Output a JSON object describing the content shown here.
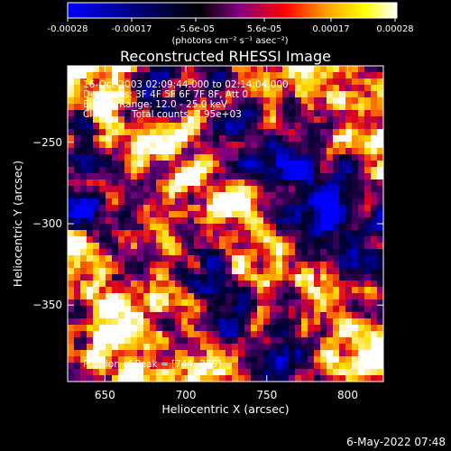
{
  "colorbar": {
    "tick_labels": [
      "-0.00028",
      "-0.00017",
      "-5.6e-05",
      "5.6e-05",
      "0.00017",
      "0.00028"
    ],
    "unit_label": "(photons cm⁻² s⁻¹ asec⁻²)",
    "range": [
      -0.00028,
      0.00028
    ],
    "colormap": [
      "#0000ff",
      "#000000",
      "#800080",
      "#ff0000",
      "#ff9900",
      "#ffff00",
      "#ffffff"
    ]
  },
  "chart_data": {
    "type": "heatmap",
    "title": "Reconstructed RHESSI Image",
    "xlabel": "Heliocentric X (arcsec)",
    "ylabel": "Heliocentric Y (arcsec)",
    "xlim": [
      627,
      822
    ],
    "ylim": [
      -397,
      -203
    ],
    "x_ticks": [
      650,
      700,
      750,
      800
    ],
    "y_ticks": [
      -250,
      -300,
      -350
    ],
    "x_tick_labels": [
      "650",
      "700",
      "750",
      "800"
    ],
    "y_tick_labels": [
      "−250",
      "−300",
      "−350"
    ],
    "peak": [
      744,
      -279
    ],
    "grid": false
  },
  "info": {
    "line1": "16-Oct-2003 02:09:44.000 to 02:14:04.000",
    "line2": "Detectors: 3F 4F 5F 6F 7F 8F, Att 0",
    "line3": "Energy Range: 12.0 - 25.0 keV",
    "line4_label": "Clean",
    "line4_value": "Total counts: 2.95e+03",
    "peak_text": "Position of Peak = [744,-279]"
  },
  "timestamp": "6-May-2022 07:48"
}
